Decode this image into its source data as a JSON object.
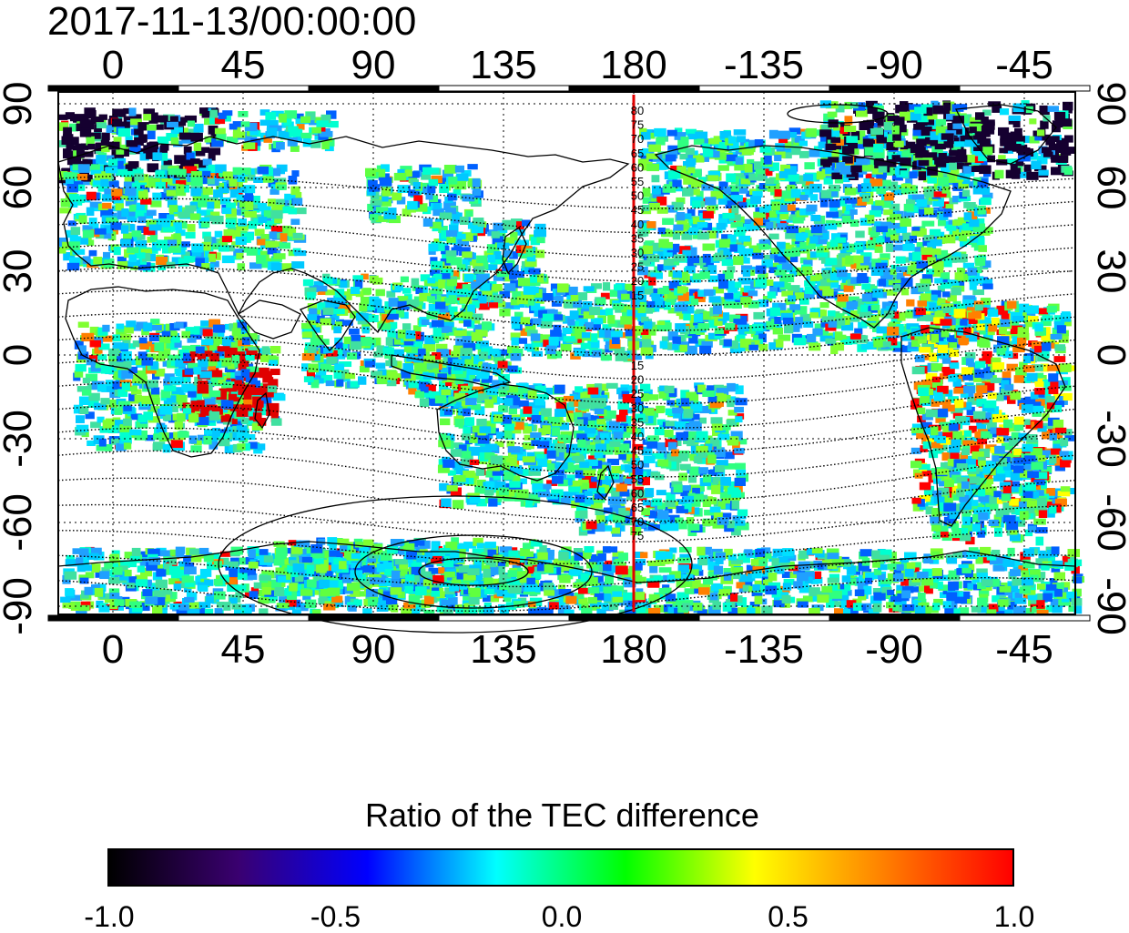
{
  "title": "2017-11-13/00:00:00",
  "map": {
    "lon_ticks": [
      "0",
      "45",
      "90",
      "135",
      "180",
      "-135",
      "-90",
      "-45"
    ],
    "lat_ticks": [
      "90",
      "60",
      "30",
      "0",
      "-30",
      "-60",
      "-90"
    ],
    "terminator_line_color": "#e00000",
    "terminator_longitude": 180,
    "contour_labels_north": [
      "80",
      "75",
      "70",
      "65",
      "60",
      "55",
      "50",
      "45",
      "40",
      "35",
      "30",
      "25",
      "20",
      "15"
    ],
    "contour_labels_south": [
      "15",
      "20",
      "25",
      "30",
      "35",
      "40",
      "45",
      "50",
      "55",
      "60",
      "65",
      "70",
      "75"
    ]
  },
  "colorbar": {
    "title": "Ratio of the TEC difference",
    "tick_labels": [
      "-1.0",
      "-0.5",
      "0.0",
      "0.5",
      "1.0"
    ],
    "min": -1.0,
    "max": 1.0,
    "colors": [
      "#000000",
      "#3a0070",
      "#0000ff",
      "#00ffff",
      "#00ff00",
      "#ffff00",
      "#ff8000",
      "#ff0000"
    ]
  }
}
